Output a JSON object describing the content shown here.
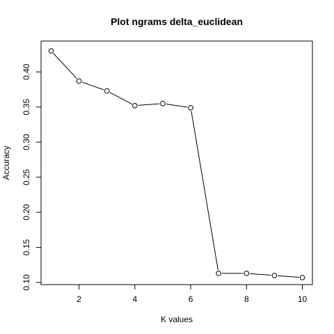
{
  "chart_data": {
    "type": "line",
    "title": "Plot ngrams delta_euclidean",
    "xlabel": "K values",
    "ylabel": "Accuracy",
    "x": [
      1,
      2,
      3,
      4,
      5,
      6,
      7,
      8,
      9,
      10
    ],
    "series": [
      {
        "values": [
          0.43,
          0.387,
          0.373,
          0.352,
          0.355,
          0.349,
          0.113,
          0.113,
          0.11,
          0.107
        ]
      }
    ],
    "xlim": [
      0.64,
      10.36
    ],
    "ylim": [
      0.097,
      0.444
    ],
    "xticks": [
      2,
      4,
      6,
      8,
      10
    ],
    "yticks": [
      0.1,
      0.15,
      0.2,
      0.25,
      0.3,
      0.35,
      0.4
    ],
    "ytick_labels": [
      "0.10",
      "0.15",
      "0.20",
      "0.25",
      "0.30",
      "0.35",
      "0.40"
    ],
    "grid": false,
    "marker": "open-circle",
    "line_color": "#000000"
  }
}
